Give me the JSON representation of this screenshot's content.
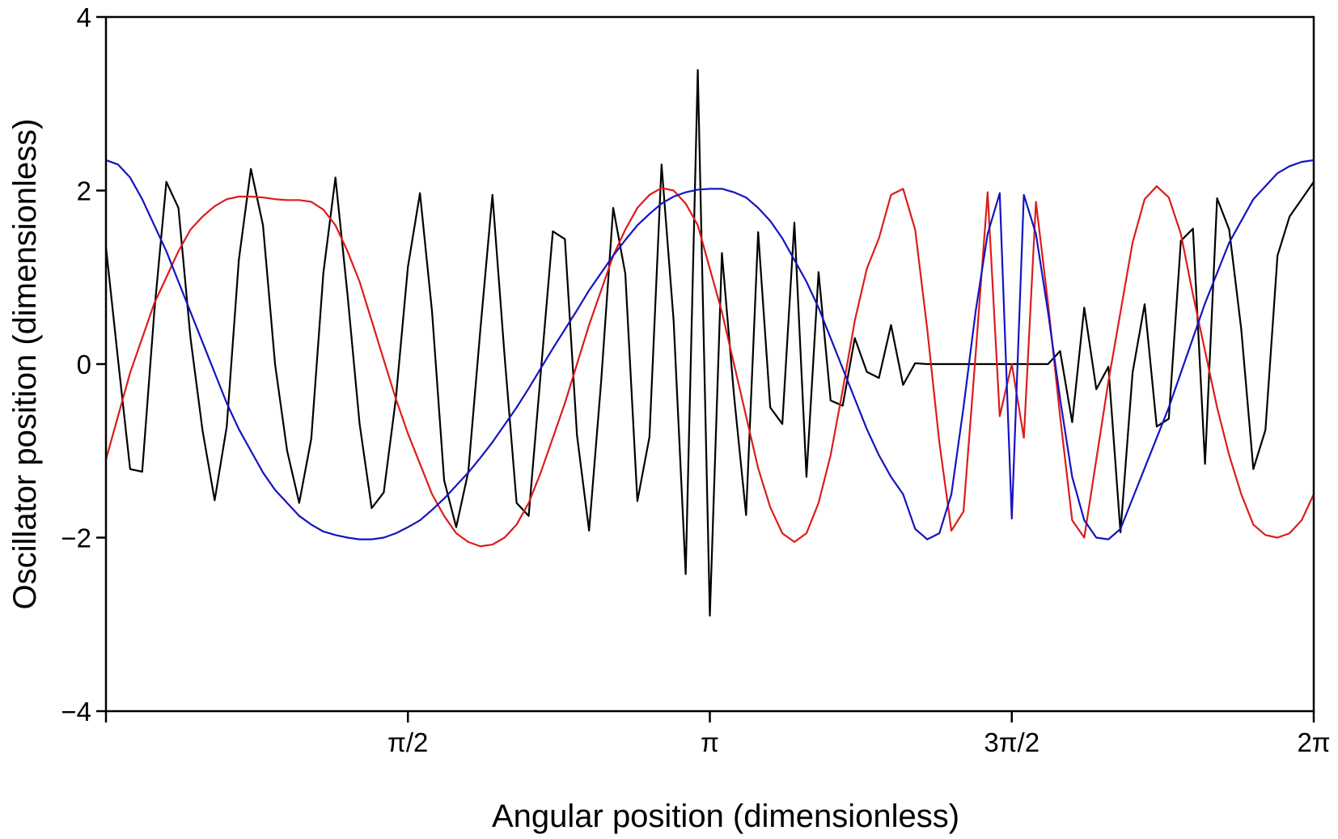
{
  "chart_data": {
    "type": "line",
    "x_label": "Angular position (dimensionless)",
    "y_label": "Oscillator position (dimensionless)",
    "xlim": [
      0,
      6.2832
    ],
    "xticks": [
      {
        "value": 1.5708,
        "label": "π/2"
      },
      {
        "value": 3.1416,
        "label": "π"
      },
      {
        "value": 4.7124,
        "label": "3π/2"
      },
      {
        "value": 6.2832,
        "label": "2π"
      }
    ],
    "ylim": [
      -4,
      4
    ],
    "yticks": [
      {
        "value": -4,
        "label": "−4"
      },
      {
        "value": -2,
        "label": "−2"
      },
      0,
      2,
      4
    ],
    "grid": false,
    "x": [
      0,
      0.0628,
      0.1257,
      0.1885,
      0.2513,
      0.3142,
      0.377,
      0.4398,
      0.5027,
      0.5655,
      0.6283,
      0.6912,
      0.754,
      0.8168,
      0.8796,
      0.9425,
      1.0053,
      1.0681,
      1.131,
      1.1938,
      1.2566,
      1.3195,
      1.3823,
      1.4451,
      1.508,
      1.5708,
      1.6336,
      1.6965,
      1.7593,
      1.8221,
      1.885,
      1.9478,
      2.0106,
      2.0735,
      2.1363,
      2.1991,
      2.2619,
      2.3248,
      2.3876,
      2.4504,
      2.5133,
      2.5761,
      2.6389,
      2.7018,
      2.7646,
      2.8274,
      2.8903,
      2.9531,
      3.0159,
      3.0788,
      3.1416,
      3.2044,
      3.2673,
      3.3301,
      3.3929,
      3.4558,
      3.5186,
      3.5814,
      3.6442,
      3.7071,
      3.7699,
      3.8327,
      3.8956,
      3.9584,
      4.0212,
      4.0841,
      4.1469,
      4.2097,
      4.2726,
      4.3354,
      4.3982,
      4.4611,
      4.5239,
      4.5867,
      4.6496,
      4.7124,
      4.7752,
      4.8381,
      4.9009,
      4.9637,
      5.0265,
      5.0894,
      5.1522,
      5.215,
      5.2779,
      5.3407,
      5.4035,
      5.4664,
      5.5292,
      5.592,
      5.6549,
      5.7177,
      5.7805,
      5.8434,
      5.9062,
      5.969,
      6.0319,
      6.0947,
      6.1575,
      6.2204,
      6.2832
    ],
    "series": [
      {
        "color": "#000000",
        "values": [
          1.35,
          0.05,
          -1.21,
          -1.24,
          0.6,
          2.1,
          1.8,
          0.3,
          -0.77,
          -1.57,
          -0.72,
          1.2,
          2.25,
          1.6,
          0.0,
          -1.0,
          -1.6,
          -0.86,
          1.05,
          2.15,
          0.8,
          -0.69,
          -1.66,
          -1.48,
          -0.4,
          1.12,
          1.97,
          0.6,
          -1.34,
          -1.88,
          -1.24,
          0.4,
          1.95,
          0.1,
          -1.6,
          -1.75,
          -0.1,
          1.53,
          1.44,
          -0.82,
          -1.92,
          -0.2,
          1.8,
          1.04,
          -1.58,
          -0.84,
          2.3,
          0.5,
          -2.42,
          3.39,
          -2.9,
          1.28,
          -0.36,
          -1.74,
          1.52,
          -0.5,
          -0.69,
          1.63,
          -1.3,
          1.06,
          -0.42,
          -0.48,
          0.3,
          -0.09,
          -0.16,
          0.45,
          -0.24,
          0.01,
          0,
          0,
          0,
          0,
          0,
          0,
          0,
          0,
          0,
          0,
          0,
          0.15,
          -0.67,
          0.65,
          -0.29,
          -0.03,
          -1.94,
          -0.1,
          0.69,
          -0.72,
          -0.63,
          1.42,
          1.56,
          -1.15,
          1.91,
          1.55,
          0.4,
          -1.21,
          -0.76,
          1.25,
          1.7,
          1.9,
          2.1
        ]
      },
      {
        "color": "#dd1c1c",
        "values": [
          -1.1,
          -0.6,
          -0.1,
          0.3,
          0.7,
          1.0,
          1.3,
          1.55,
          1.7,
          1.82,
          1.9,
          1.93,
          1.93,
          1.92,
          1.9,
          1.89,
          1.89,
          1.87,
          1.78,
          1.6,
          1.3,
          0.95,
          0.5,
          0.05,
          -0.4,
          -0.8,
          -1.15,
          -1.5,
          -1.75,
          -1.95,
          -2.05,
          -2.1,
          -2.08,
          -2.0,
          -1.85,
          -1.6,
          -1.25,
          -0.85,
          -0.45,
          0.0,
          0.45,
          0.85,
          1.25,
          1.55,
          1.8,
          1.95,
          2.03,
          2.0,
          1.85,
          1.6,
          1.1,
          0.6,
          0.0,
          -0.6,
          -1.2,
          -1.65,
          -1.95,
          -2.05,
          -1.95,
          -1.6,
          -1.05,
          -0.3,
          0.5,
          1.1,
          1.45,
          1.95,
          2.02,
          1.55,
          0.4,
          -0.9,
          -1.92,
          -1.7,
          0.1,
          1.98,
          -0.6,
          0.0,
          -0.85,
          1.87,
          0.7,
          -0.6,
          -1.8,
          -2.0,
          -1.1,
          -0.2,
          0.6,
          1.4,
          1.9,
          2.05,
          1.92,
          1.5,
          0.8,
          0.15,
          -0.5,
          -1.05,
          -1.5,
          -1.85,
          -1.97,
          -2.0,
          -1.95,
          -1.8,
          -1.5
        ]
      },
      {
        "color": "#1414c0",
        "values": [
          2.35,
          2.3,
          2.15,
          1.9,
          1.6,
          1.3,
          0.95,
          0.6,
          0.25,
          -0.1,
          -0.45,
          -0.75,
          -1.0,
          -1.25,
          -1.45,
          -1.6,
          -1.75,
          -1.85,
          -1.93,
          -1.97,
          -2.0,
          -2.02,
          -2.02,
          -2.0,
          -1.95,
          -1.88,
          -1.8,
          -1.68,
          -1.55,
          -1.4,
          -1.25,
          -1.08,
          -0.9,
          -0.7,
          -0.5,
          -0.28,
          -0.05,
          0.18,
          0.4,
          0.62,
          0.85,
          1.05,
          1.25,
          1.43,
          1.6,
          1.73,
          1.85,
          1.93,
          1.98,
          2.01,
          2.02,
          2.02,
          1.98,
          1.92,
          1.8,
          1.65,
          1.45,
          1.2,
          0.95,
          0.65,
          0.3,
          -0.05,
          -0.4,
          -0.75,
          -1.05,
          -1.3,
          -1.5,
          -1.9,
          -2.02,
          -1.95,
          -1.5,
          -0.5,
          0.6,
          1.5,
          1.97,
          -1.78,
          1.95,
          1.5,
          0.6,
          -0.4,
          -1.3,
          -1.8,
          -2.0,
          -2.02,
          -1.9,
          -1.55,
          -1.2,
          -0.85,
          -0.5,
          -0.1,
          0.3,
          0.7,
          1.05,
          1.4,
          1.65,
          1.9,
          2.05,
          2.2,
          2.28,
          2.33,
          2.35
        ]
      }
    ]
  }
}
